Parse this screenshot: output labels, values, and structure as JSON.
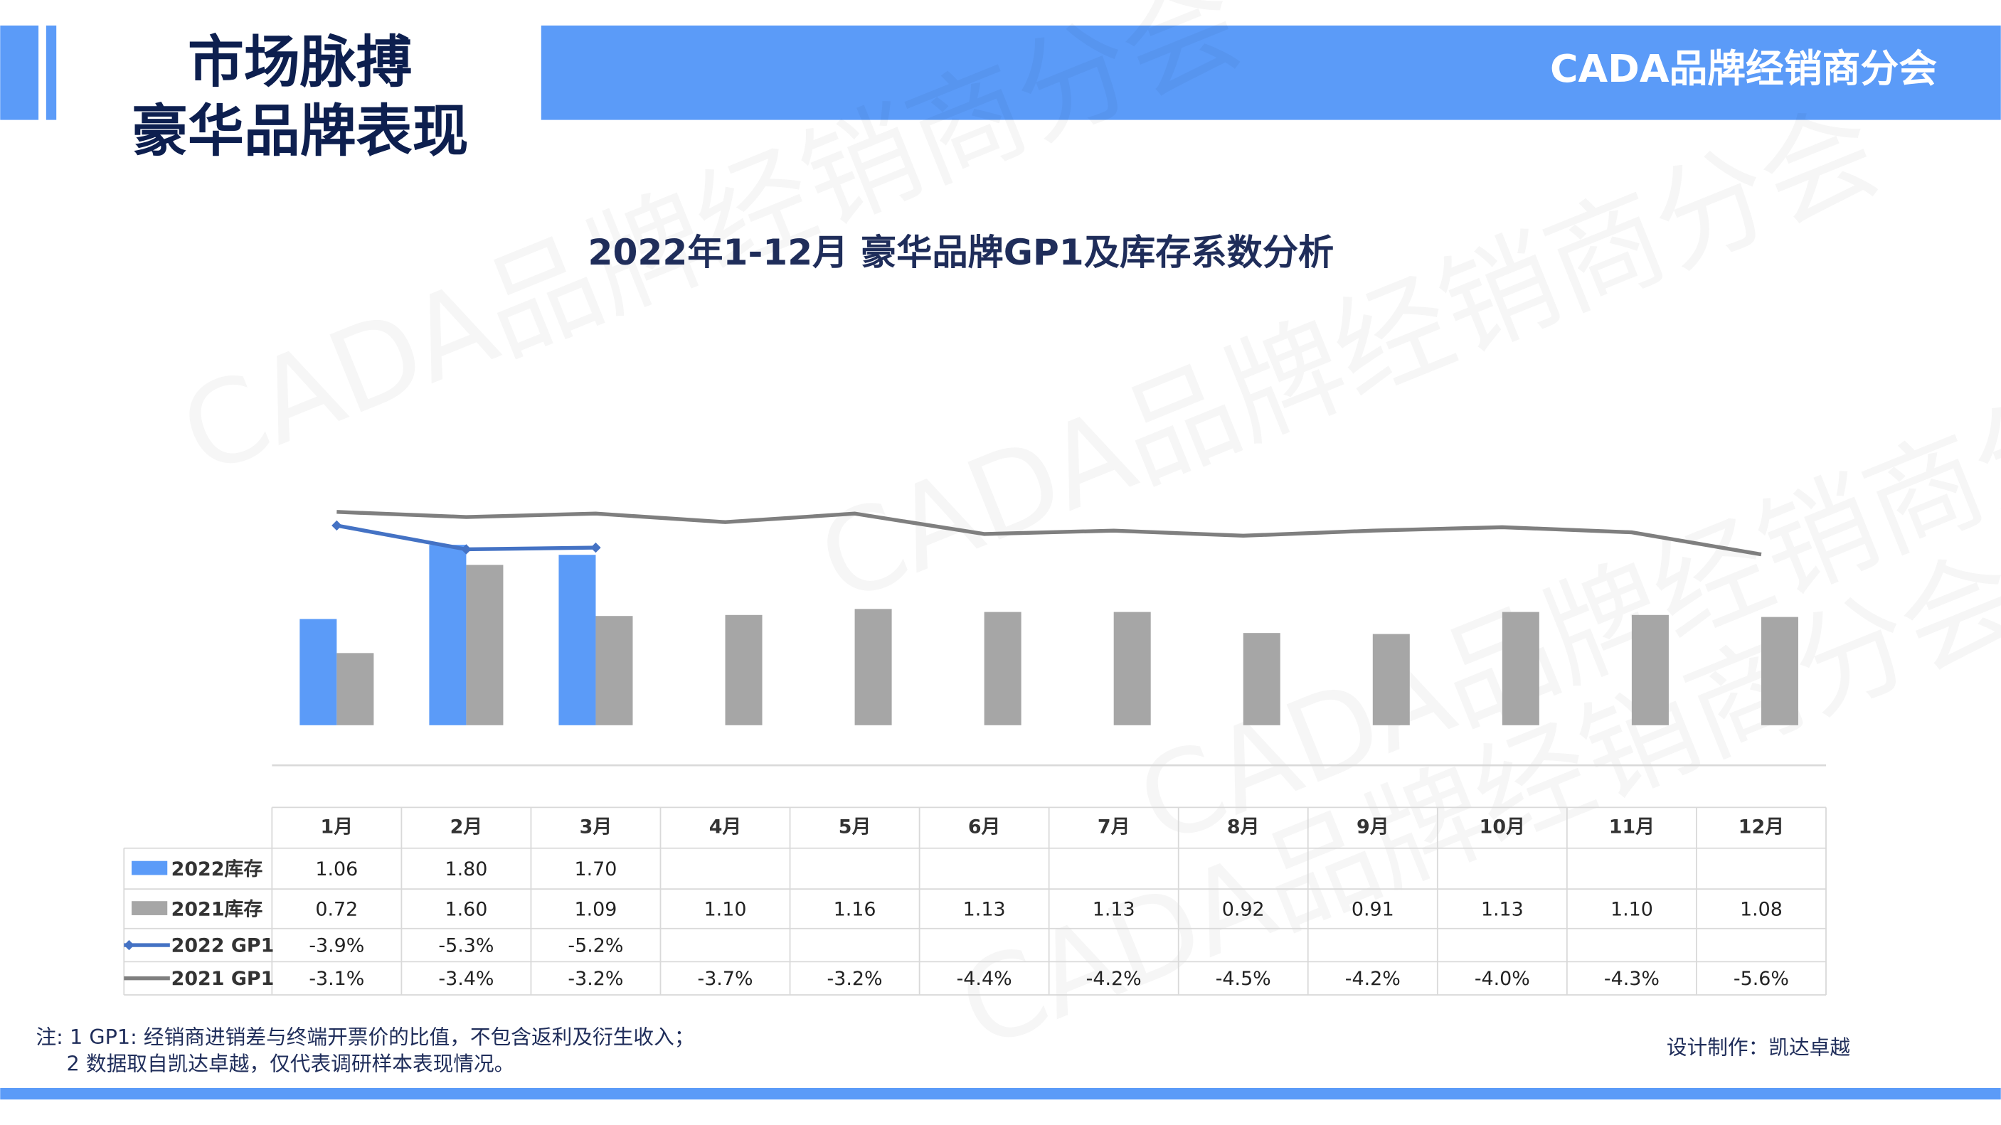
{
  "header": {
    "title_lines": [
      "市场脉搏",
      "豪华品牌表现"
    ],
    "org": "CADA品牌经销商分会"
  },
  "watermark": "CADA品牌经销商分会",
  "chart_data": {
    "type": "combo",
    "title": "2022年1-12月 豪华品牌GP1及库存系数分析",
    "categories": [
      "1月",
      "2月",
      "3月",
      "4月",
      "5月",
      "6月",
      "7月",
      "8月",
      "9月",
      "10月",
      "11月",
      "12月"
    ],
    "ylim": [
      -0.4,
      2.4
    ],
    "y2lim": [
      -18,
      -1.5
    ],
    "series": [
      {
        "name": "2022库存",
        "type": "bar",
        "color": "#5b9bf8",
        "values": [
          1.06,
          1.8,
          1.7,
          null,
          null,
          null,
          null,
          null,
          null,
          null,
          null,
          null
        ],
        "value_labels": [
          "1.06",
          "1.80",
          "1.70",
          null,
          null,
          null,
          null,
          null,
          null,
          null,
          null,
          null
        ]
      },
      {
        "name": "2021库存",
        "type": "bar",
        "color": "#a6a6a6",
        "values": [
          0.72,
          1.6,
          1.09,
          1.1,
          1.16,
          1.13,
          1.13,
          0.92,
          0.91,
          1.13,
          1.1,
          1.08
        ],
        "value_labels": [
          "0.72",
          "1.60",
          "1.09",
          "1.10",
          "1.16",
          "1.13",
          "1.13",
          "0.92",
          "0.91",
          "1.13",
          "1.10",
          "1.08"
        ]
      },
      {
        "name": "2022 GP1",
        "type": "line",
        "axis": "y2",
        "color": "#4472c4",
        "marker": "diamond",
        "values": [
          -3.9,
          -5.3,
          -5.2,
          null,
          null,
          null,
          null,
          null,
          null,
          null,
          null,
          null
        ],
        "value_labels": [
          "-3.9%",
          "-5.3%",
          "-5.2%",
          null,
          null,
          null,
          null,
          null,
          null,
          null,
          null,
          null
        ]
      },
      {
        "name": "2021 GP1",
        "type": "line",
        "axis": "y2",
        "color": "#7f7f7f",
        "values": [
          -3.1,
          -3.4,
          -3.2,
          -3.7,
          -3.2,
          -4.4,
          -4.2,
          -4.5,
          -4.2,
          -4.0,
          -4.3,
          -5.6
        ],
        "value_labels": [
          "-3.1%",
          "-3.4%",
          "-3.2%",
          "-3.7%",
          "-3.2%",
          "-4.4%",
          "-4.2%",
          "-4.5%",
          "-4.2%",
          "-4.0%",
          "-4.3%",
          "-5.6%"
        ]
      }
    ]
  },
  "notes": [
    "注: 1  GP1: 经销商进销差与终端开票价的比值，不包含返利及衍生收入；",
    "2 数据取自凯达卓越，仅代表调研样本表现情况。"
  ],
  "credit": "设计制作：凯达卓越"
}
